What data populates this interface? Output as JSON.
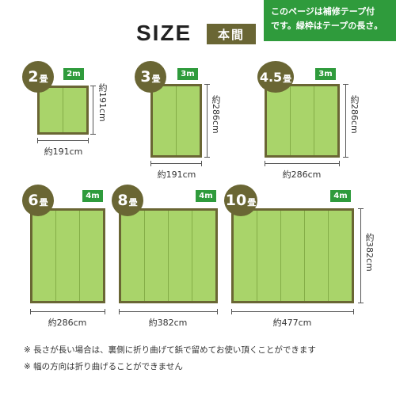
{
  "header": {
    "title": "SIZE",
    "badge": "本間"
  },
  "notice": {
    "line1": "このページは補修テープ付",
    "line2": "です。緑枠はテープの長さ。"
  },
  "mats": [
    {
      "num": "2",
      "unit": "畳",
      "tape": "2m",
      "width_label": "約191cm",
      "height_label": "約191cm"
    },
    {
      "num": "3",
      "unit": "畳",
      "tape": "3m",
      "width_label": "約191cm",
      "height_label": "約286cm"
    },
    {
      "num": "4.5",
      "unit": "畳",
      "tape": "3m",
      "width_label": "約286cm",
      "height_label": "約286cm"
    },
    {
      "num": "6",
      "unit": "畳",
      "tape": "4m",
      "width_label": "約286cm",
      "height_label": ""
    },
    {
      "num": "8",
      "unit": "畳",
      "tape": "4m",
      "width_label": "約382cm",
      "height_label": ""
    },
    {
      "num": "10",
      "unit": "畳",
      "tape": "4m",
      "width_label": "約477cm",
      "height_label": "約382cm"
    }
  ],
  "notes": [
    "※ 長さが長い場合は、裏側に折り曲げて鋲で留めてお使い頂くことができます",
    "※ 幅の方向は折り曲げることができません"
  ],
  "colors": {
    "frame": "#6a6634",
    "mat": "#a9d46a",
    "tape": "#2f9b3c"
  }
}
